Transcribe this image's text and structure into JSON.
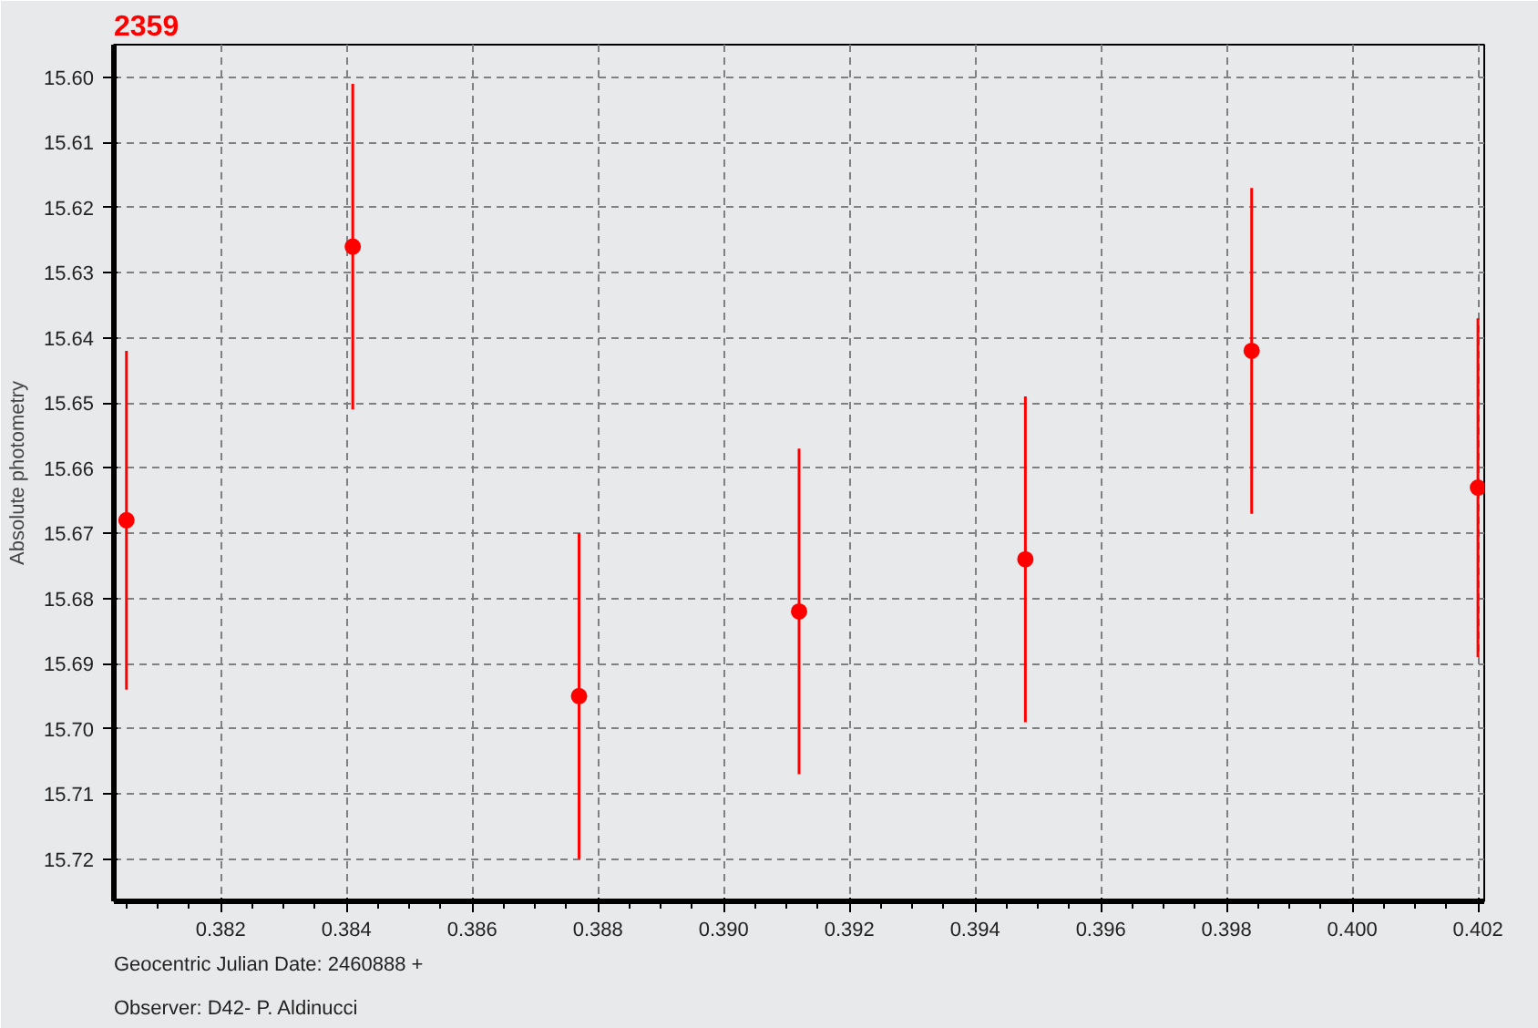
{
  "chart_data": {
    "type": "scatter",
    "title": "2359",
    "xlabel": "Geocentric Julian Date: 2460888 +",
    "ylabel": "Absolute photometry",
    "annotations": [
      "Observer: D42- P. Aldinucci"
    ],
    "x": [
      0.3805,
      0.3841,
      0.3877,
      0.3912,
      0.3948,
      0.3984,
      0.402
    ],
    "series": [
      {
        "color": "#ff0000",
        "values": [
          15.668,
          15.626,
          15.695,
          15.682,
          15.674,
          15.642,
          15.663
        ],
        "errors": [
          0.026,
          0.025,
          0.025,
          0.025,
          0.025,
          0.025,
          0.026
        ]
      }
    ],
    "xlim": [
      0.3803,
      0.4021
    ],
    "ylim": [
      15.7265,
      15.595
    ],
    "xticks": [
      0.382,
      0.384,
      0.386,
      0.388,
      {
        "value": 0.39,
        "label": "0.390"
      },
      0.392,
      0.394,
      0.396,
      0.398,
      {
        "value": 0.4,
        "label": "0.400"
      },
      0.402
    ],
    "yticks": [
      {
        "value": 15.6,
        "label": "15.60"
      },
      15.61,
      15.62,
      15.63,
      15.64,
      15.65,
      15.66,
      15.67,
      15.68,
      15.69,
      {
        "value": 15.7,
        "label": "15.70"
      },
      15.71,
      15.72
    ],
    "grid": true,
    "marker": "circle"
  }
}
